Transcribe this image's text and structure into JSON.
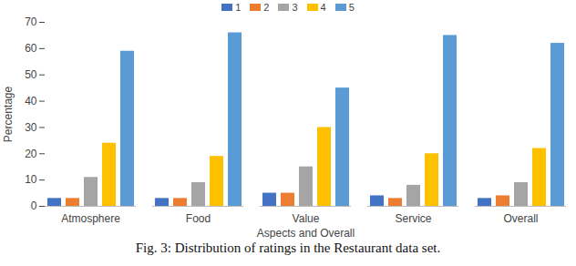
{
  "chart_data": {
    "type": "bar",
    "caption": "Fig. 3: Distribution of ratings in the Restaurant data set.",
    "x_label": "Aspects and Overall",
    "y_label": "Percentage",
    "categories": [
      "Atmosphere",
      "Food",
      "Value",
      "Service",
      "Overall"
    ],
    "series": [
      {
        "name": "1",
        "color": "#4472c4",
        "values": [
          3,
          3,
          5,
          4,
          3
        ]
      },
      {
        "name": "2",
        "color": "#ed7d31",
        "values": [
          3,
          3,
          5,
          3,
          4
        ]
      },
      {
        "name": "3",
        "color": "#a5a5a5",
        "values": [
          11,
          9,
          15,
          8,
          9
        ]
      },
      {
        "name": "4",
        "color": "#ffc000",
        "values": [
          24,
          19,
          30,
          20,
          22
        ]
      },
      {
        "name": "5",
        "color": "#5b9bd5",
        "values": [
          59,
          66,
          45,
          65,
          62
        ]
      }
    ],
    "ylim": [
      0,
      70
    ],
    "yticks": [
      0,
      10,
      20,
      30,
      40,
      50,
      60,
      70
    ],
    "grid": false,
    "legend": "top"
  }
}
